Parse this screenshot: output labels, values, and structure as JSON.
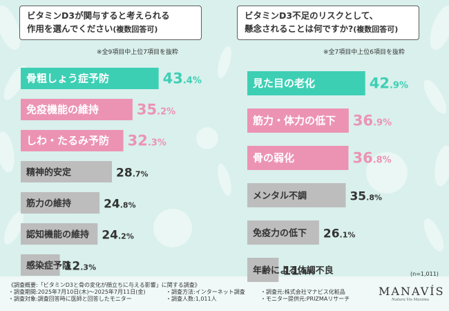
{
  "colors": {
    "teal": "#3dcfb4",
    "pink": "#ec93b3",
    "gray": "#bdbdbd",
    "background": "#d9f0ec"
  },
  "left_title": {
    "line1": "ビタミンD3が関与すると考えられる",
    "line2": "作用を選んでください",
    "line2_small": "(複数回答可)"
  },
  "left_note": "※全9項目中上位7項目を抜粋",
  "right_title": {
    "line1": "ビタミンD3不足のリスクとして、",
    "line2": "懸念されることは何ですか?",
    "line2_small": "(複数回答可)"
  },
  "right_note": "※全7項目中上位6項目を抜粋",
  "chart_data": [
    {
      "type": "bar",
      "orientation": "horizontal",
      "categories": [
        "骨粗しょう症予防",
        "免疫機能の維持",
        "しわ・たるみ予防",
        "精神的安定",
        "筋力の維持",
        "認知機能の維持",
        "感染症予防"
      ],
      "values": [
        43.4,
        35.2,
        32.3,
        28.7,
        24.8,
        24.2,
        12.3
      ],
      "labels": [
        {
          "int": "43",
          "dec": ".4%"
        },
        {
          "int": "35",
          "dec": ".2%"
        },
        {
          "int": "32",
          "dec": ".3%"
        },
        {
          "int": "28",
          "dec": ".7%"
        },
        {
          "int": "24",
          "dec": ".8%"
        },
        {
          "int": "24",
          "dec": ".2%"
        },
        {
          "int": "12",
          "dec": ".3%"
        }
      ],
      "bar_colors": [
        "teal",
        "pink",
        "pink",
        "gray",
        "gray",
        "gray",
        "gray"
      ]
    },
    {
      "type": "bar",
      "orientation": "horizontal",
      "categories": [
        "見た目の老化",
        "筋力・体力の低下",
        "骨の弱化",
        "メンタル不調",
        "免疫力の低下",
        "年齢による体調不良"
      ],
      "values": [
        42.9,
        36.9,
        36.8,
        35.8,
        26.1,
        11.4
      ],
      "labels": [
        {
          "int": "42",
          "dec": ".9%"
        },
        {
          "int": "36",
          "dec": ".9%"
        },
        {
          "int": "36",
          "dec": ".8%"
        },
        {
          "int": "35",
          "dec": ".8%"
        },
        {
          "int": "26",
          "dec": ".1%"
        },
        {
          "int": "11",
          "dec": ".4%"
        }
      ],
      "bar_colors": [
        "teal",
        "pink",
        "pink",
        "gray",
        "gray",
        "gray"
      ]
    }
  ],
  "n_note": "(n=1,011)",
  "survey": {
    "line1": "《調査概要:「ビタミンD3と骨の変化が顔立ちに与える影響」に関する調査》",
    "col1": [
      "・調査期間:2025年7月10日(木)～2025年7月11日(金)",
      "・調査対象:調査回答時に医師と回答したモニター"
    ],
    "col2": [
      "・調査方法:インターネット調査",
      "・調査人数:1,011人"
    ],
    "col3": [
      "・調査元:株式会社マナビス化粧品",
      "・モニター提供元:PRIZMAリサーチ"
    ]
  },
  "brand": {
    "logo": "MANAVÍS",
    "tagline": "Natura Vis Maxima"
  }
}
